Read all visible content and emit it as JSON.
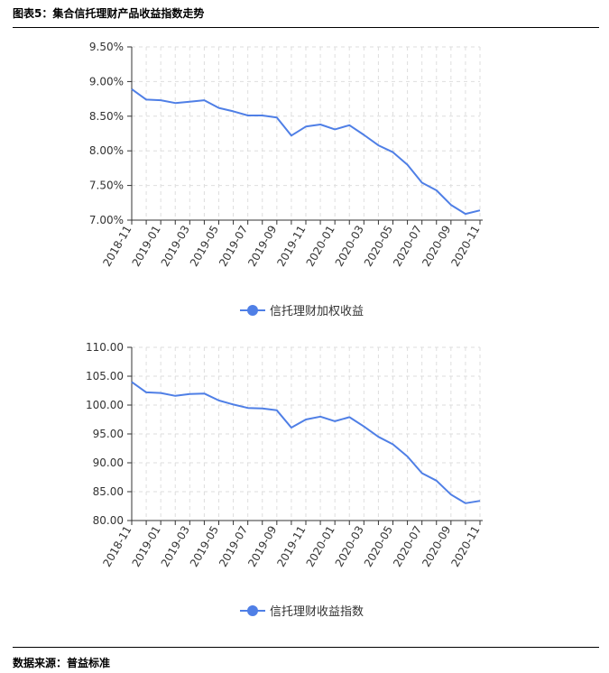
{
  "figure": {
    "title": "图表5：集合信托理财产品收益指数走势",
    "source": "数据来源：普益标准"
  },
  "chart_data": [
    {
      "type": "line",
      "color": "#4f7fe6",
      "x": [
        "2018-11",
        "2018-12",
        "2019-01",
        "2019-02",
        "2019-03",
        "2019-04",
        "2019-05",
        "2019-06",
        "2019-07",
        "2019-08",
        "2019-09",
        "2019-10",
        "2019-11",
        "2019-12",
        "2020-01",
        "2020-02",
        "2020-03",
        "2020-04",
        "2020-05",
        "2020-06",
        "2020-07",
        "2020-08",
        "2020-09",
        "2020-10",
        "2020-11"
      ],
      "xtick_labels": [
        "2018-11",
        "2019-01",
        "2019-03",
        "2019-05",
        "2019-07",
        "2019-09",
        "2019-11",
        "2020-01",
        "2020-03",
        "2020-05",
        "2020-07",
        "2020-09",
        "2020-11"
      ],
      "series": [
        {
          "name": "信托理财加权收益",
          "values": [
            8.89,
            8.74,
            8.73,
            8.69,
            8.71,
            8.73,
            8.62,
            8.57,
            8.51,
            8.51,
            8.48,
            8.22,
            8.35,
            8.38,
            8.31,
            8.37,
            8.23,
            8.08,
            7.98,
            7.8,
            7.54,
            7.43,
            7.22,
            7.09,
            7.14
          ]
        }
      ],
      "ylim": [
        7.0,
        9.5
      ],
      "yticks": [
        "7.00%",
        "7.50%",
        "8.00%",
        "8.50%",
        "9.00%",
        "9.50%"
      ],
      "grid": true,
      "legend": "bottom"
    },
    {
      "type": "line",
      "color": "#4f7fe6",
      "x": [
        "2018-11",
        "2018-12",
        "2019-01",
        "2019-02",
        "2019-03",
        "2019-04",
        "2019-05",
        "2019-06",
        "2019-07",
        "2019-08",
        "2019-09",
        "2019-10",
        "2019-11",
        "2019-12",
        "2020-01",
        "2020-02",
        "2020-03",
        "2020-04",
        "2020-05",
        "2020-06",
        "2020-07",
        "2020-08",
        "2020-09",
        "2020-10",
        "2020-11"
      ],
      "xtick_labels": [
        "2018-11",
        "2019-01",
        "2019-03",
        "2019-05",
        "2019-07",
        "2019-09",
        "2019-11",
        "2020-01",
        "2020-03",
        "2020-05",
        "2020-07",
        "2020-09",
        "2020-11"
      ],
      "series": [
        {
          "name": "信托理财收益指数",
          "values": [
            104.0,
            102.2,
            102.1,
            101.6,
            101.9,
            102.0,
            100.8,
            100.1,
            99.5,
            99.4,
            99.1,
            96.1,
            97.5,
            98.0,
            97.2,
            97.9,
            96.3,
            94.5,
            93.2,
            91.1,
            88.2,
            86.9,
            84.5,
            83.0,
            83.4
          ]
        }
      ],
      "ylim": [
        80,
        110
      ],
      "yticks": [
        "80.00",
        "85.00",
        "90.00",
        "95.00",
        "100.00",
        "105.00",
        "110.00"
      ],
      "grid": true,
      "legend": "bottom"
    }
  ]
}
